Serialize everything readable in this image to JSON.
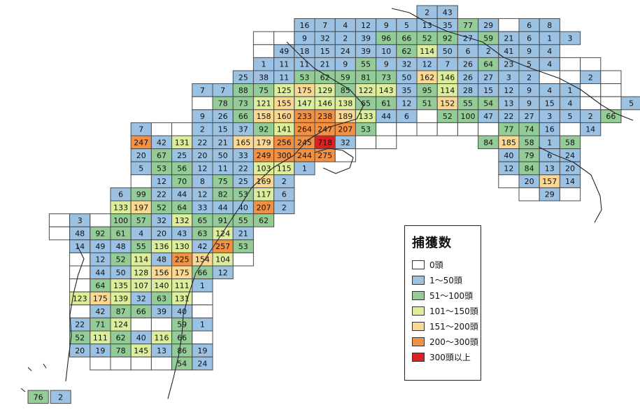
{
  "colors": {
    "zero": "#ffffff",
    "c1_50": "#9bc1e3",
    "c51_100": "#94cc98",
    "c101_150": "#dcee9c",
    "c151_200": "#fbd891",
    "c200_300": "#f29044",
    "c300_plus": "#e02020"
  },
  "legend": {
    "title": "捕獲数",
    "items": [
      {
        "label": "0頭",
        "color_key": "zero"
      },
      {
        "label": "1～50頭",
        "color_key": "c1_50"
      },
      {
        "label": "51～100頭",
        "color_key": "c51_100"
      },
      {
        "label": "101～150頭",
        "color_key": "c101_150"
      },
      {
        "label": "151～200頭",
        "color_key": "c151_200"
      },
      {
        "label": "200～300頭",
        "color_key": "c200_300"
      },
      {
        "label": "300頭以上",
        "color_key": "c300_plus"
      }
    ]
  },
  "grid_rows": [
    [
      {
        "c": 20,
        "v": "2"
      },
      {
        "c": 21,
        "v": "43"
      }
    ],
    [
      {
        "c": 14,
        "v": "16"
      },
      {
        "c": 15,
        "v": "7"
      },
      {
        "c": 16,
        "v": "4"
      },
      {
        "c": 17,
        "v": "12"
      },
      {
        "c": 18,
        "v": "9"
      },
      {
        "c": 19,
        "v": "5"
      },
      {
        "c": 20,
        "v": "13"
      },
      {
        "c": 21,
        "v": "35"
      },
      {
        "c": 22,
        "v": "77"
      },
      {
        "c": 23,
        "v": "29"
      },
      {
        "c": 24,
        "v": ""
      },
      {
        "c": 25,
        "v": "6"
      },
      {
        "c": 26,
        "v": "8"
      }
    ],
    [
      {
        "c": 12,
        "v": ""
      },
      {
        "c": 13,
        "v": ""
      },
      {
        "c": 14,
        "v": "9"
      },
      {
        "c": 15,
        "v": "32"
      },
      {
        "c": 16,
        "v": "2"
      },
      {
        "c": 17,
        "v": "39"
      },
      {
        "c": 18,
        "v": "96"
      },
      {
        "c": 19,
        "v": "66"
      },
      {
        "c": 20,
        "v": "52"
      },
      {
        "c": 21,
        "v": "92"
      },
      {
        "c": 22,
        "v": "27"
      },
      {
        "c": 23,
        "v": "59"
      },
      {
        "c": 24,
        "v": "21"
      },
      {
        "c": 25,
        "v": "6"
      },
      {
        "c": 26,
        "v": "1"
      },
      {
        "c": 27,
        "v": "3"
      }
    ],
    [
      {
        "c": 12,
        "v": ""
      },
      {
        "c": 13,
        "v": "49"
      },
      {
        "c": 14,
        "v": "18"
      },
      {
        "c": 15,
        "v": "15"
      },
      {
        "c": 16,
        "v": "24"
      },
      {
        "c": 17,
        "v": "39"
      },
      {
        "c": 18,
        "v": "10"
      },
      {
        "c": 19,
        "v": "62"
      },
      {
        "c": 20,
        "v": "114"
      },
      {
        "c": 21,
        "v": "50"
      },
      {
        "c": 22,
        "v": "6"
      },
      {
        "c": 23,
        "v": "2"
      },
      {
        "c": 24,
        "v": "41"
      },
      {
        "c": 25,
        "v": "9"
      },
      {
        "c": 26,
        "v": "4"
      }
    ],
    [
      {
        "c": 12,
        "v": "1"
      },
      {
        "c": 13,
        "v": "11"
      },
      {
        "c": 14,
        "v": "11"
      },
      {
        "c": 15,
        "v": "21"
      },
      {
        "c": 16,
        "v": "9"
      },
      {
        "c": 17,
        "v": "55"
      },
      {
        "c": 18,
        "v": "9"
      },
      {
        "c": 19,
        "v": "32"
      },
      {
        "c": 20,
        "v": "12"
      },
      {
        "c": 21,
        "v": "7"
      },
      {
        "c": 22,
        "v": "26"
      },
      {
        "c": 23,
        "v": "64"
      },
      {
        "c": 24,
        "v": "23"
      },
      {
        "c": 25,
        "v": "5"
      },
      {
        "c": 26,
        "v": "4"
      },
      {
        "c": 27,
        "v": ""
      },
      {
        "c": 28,
        "v": ""
      }
    ],
    [
      {
        "c": 11,
        "v": "25"
      },
      {
        "c": 12,
        "v": "38"
      },
      {
        "c": 13,
        "v": "11"
      },
      {
        "c": 14,
        "v": "53"
      },
      {
        "c": 15,
        "v": "62"
      },
      {
        "c": 16,
        "v": "59"
      },
      {
        "c": 17,
        "v": "81"
      },
      {
        "c": 18,
        "v": "73"
      },
      {
        "c": 19,
        "v": "50"
      },
      {
        "c": 20,
        "v": "162"
      },
      {
        "c": 21,
        "v": "146"
      },
      {
        "c": 22,
        "v": "26"
      },
      {
        "c": 23,
        "v": "27"
      },
      {
        "c": 24,
        "v": "3"
      },
      {
        "c": 25,
        "v": "2"
      },
      {
        "c": 26,
        "v": ""
      },
      {
        "c": 27,
        "v": ""
      },
      {
        "c": 28,
        "v": "2"
      },
      {
        "c": 29,
        "v": ""
      }
    ],
    [
      {
        "c": 9,
        "v": "7"
      },
      {
        "c": 10,
        "v": "7"
      },
      {
        "c": 11,
        "v": "88"
      },
      {
        "c": 12,
        "v": "75"
      },
      {
        "c": 13,
        "v": "125"
      },
      {
        "c": 14,
        "v": "175"
      },
      {
        "c": 15,
        "v": "129"
      },
      {
        "c": 16,
        "v": "85"
      },
      {
        "c": 17,
        "v": "122"
      },
      {
        "c": 18,
        "v": "143"
      },
      {
        "c": 19,
        "v": "35"
      },
      {
        "c": 20,
        "v": "95"
      },
      {
        "c": 21,
        "v": "114"
      },
      {
        "c": 22,
        "v": "28"
      },
      {
        "c": 23,
        "v": "15"
      },
      {
        "c": 24,
        "v": "12"
      },
      {
        "c": 25,
        "v": "9"
      },
      {
        "c": 26,
        "v": "4"
      },
      {
        "c": 27,
        "v": "1"
      },
      {
        "c": 28,
        "v": ""
      },
      {
        "c": 29,
        "v": ""
      }
    ],
    [
      {
        "c": 9,
        "v": ""
      },
      {
        "c": 10,
        "v": "78"
      },
      {
        "c": 11,
        "v": "73"
      },
      {
        "c": 12,
        "v": "121"
      },
      {
        "c": 13,
        "v": "155"
      },
      {
        "c": 14,
        "v": "147"
      },
      {
        "c": 15,
        "v": "146"
      },
      {
        "c": 16,
        "v": "138"
      },
      {
        "c": 17,
        "v": "65"
      },
      {
        "c": 18,
        "v": "61"
      },
      {
        "c": 19,
        "v": "12"
      },
      {
        "c": 20,
        "v": "51"
      },
      {
        "c": 21,
        "v": "152"
      },
      {
        "c": 22,
        "v": "55"
      },
      {
        "c": 23,
        "v": "54"
      },
      {
        "c": 24,
        "v": "13"
      },
      {
        "c": 25,
        "v": "9"
      },
      {
        "c": 26,
        "v": "15"
      },
      {
        "c": 27,
        "v": "4"
      },
      {
        "c": 28,
        "v": ""
      },
      {
        "c": 29,
        "v": ""
      },
      {
        "c": 30,
        "v": "5"
      }
    ],
    [
      {
        "c": 9,
        "v": "9"
      },
      {
        "c": 10,
        "v": "26"
      },
      {
        "c": 11,
        "v": "66"
      },
      {
        "c": 12,
        "v": "158"
      },
      {
        "c": 13,
        "v": "160"
      },
      {
        "c": 14,
        "v": "233"
      },
      {
        "c": 15,
        "v": "238"
      },
      {
        "c": 16,
        "v": "189"
      },
      {
        "c": 17,
        "v": "133"
      },
      {
        "c": 18,
        "v": "44"
      },
      {
        "c": 19,
        "v": "6"
      },
      {
        "c": 20,
        "v": ""
      },
      {
        "c": 21,
        "v": "52"
      },
      {
        "c": 22,
        "v": "100"
      },
      {
        "c": 23,
        "v": "47"
      },
      {
        "c": 24,
        "v": "22"
      },
      {
        "c": 25,
        "v": "27"
      },
      {
        "c": 26,
        "v": "3"
      },
      {
        "c": 27,
        "v": "5"
      },
      {
        "c": 28,
        "v": "2"
      },
      {
        "c": 29,
        "v": "66"
      }
    ],
    [
      {
        "c": 6,
        "v": "7"
      },
      {
        "c": 7,
        "v": ""
      },
      {
        "c": 8,
        "v": ""
      },
      {
        "c": 9,
        "v": "2"
      },
      {
        "c": 10,
        "v": "15"
      },
      {
        "c": 11,
        "v": "37"
      },
      {
        "c": 12,
        "v": "92"
      },
      {
        "c": 13,
        "v": "141"
      },
      {
        "c": 14,
        "v": "264"
      },
      {
        "c": 15,
        "v": "247"
      },
      {
        "c": 16,
        "v": "207"
      },
      {
        "c": 17,
        "v": "53"
      },
      {
        "c": 18,
        "v": ""
      },
      {
        "c": 19,
        "v": ""
      },
      {
        "c": 20,
        "v": ""
      },
      {
        "c": 21,
        "v": ""
      },
      {
        "c": 22,
        "v": ""
      },
      {
        "c": 23,
        "v": ""
      },
      {
        "c": 24,
        "v": "77"
      },
      {
        "c": 25,
        "v": "74"
      },
      {
        "c": 26,
        "v": "16"
      },
      {
        "c": 27,
        "v": ""
      },
      {
        "c": 28,
        "v": "14"
      }
    ],
    [
      {
        "c": 6,
        "v": "247"
      },
      {
        "c": 7,
        "v": "42"
      },
      {
        "c": 8,
        "v": "131"
      },
      {
        "c": 9,
        "v": "22"
      },
      {
        "c": 10,
        "v": "21"
      },
      {
        "c": 11,
        "v": "165"
      },
      {
        "c": 12,
        "v": "179"
      },
      {
        "c": 13,
        "v": "256"
      },
      {
        "c": 14,
        "v": "245"
      },
      {
        "c": 15,
        "v": "718"
      },
      {
        "c": 16,
        "v": "32"
      },
      {
        "c": 17,
        "v": ""
      },
      {
        "c": 18,
        "v": ""
      },
      {
        "c": 23,
        "v": "84"
      },
      {
        "c": 24,
        "v": "185"
      },
      {
        "c": 25,
        "v": "58"
      },
      {
        "c": 26,
        "v": "1"
      },
      {
        "c": 27,
        "v": "58"
      }
    ],
    [
      {
        "c": 6,
        "v": "20"
      },
      {
        "c": 7,
        "v": "67"
      },
      {
        "c": 8,
        "v": "25"
      },
      {
        "c": 9,
        "v": "20"
      },
      {
        "c": 10,
        "v": "50"
      },
      {
        "c": 11,
        "v": "33"
      },
      {
        "c": 12,
        "v": "249"
      },
      {
        "c": 13,
        "v": "300"
      },
      {
        "c": 14,
        "v": "244"
      },
      {
        "c": 15,
        "v": "275"
      },
      {
        "c": 16,
        "v": ""
      },
      {
        "c": 24,
        "v": "40"
      },
      {
        "c": 25,
        "v": "79"
      },
      {
        "c": 26,
        "v": "6"
      },
      {
        "c": 27,
        "v": "24"
      }
    ],
    [
      {
        "c": 6,
        "v": "5"
      },
      {
        "c": 7,
        "v": "53"
      },
      {
        "c": 8,
        "v": "56"
      },
      {
        "c": 9,
        "v": "12"
      },
      {
        "c": 10,
        "v": "11"
      },
      {
        "c": 11,
        "v": "22"
      },
      {
        "c": 12,
        "v": "103"
      },
      {
        "c": 13,
        "v": "115"
      },
      {
        "c": 14,
        "v": "1"
      },
      {
        "c": 24,
        "v": "12"
      },
      {
        "c": 25,
        "v": "84"
      },
      {
        "c": 26,
        "v": "13"
      },
      {
        "c": 27,
        "v": "20"
      }
    ],
    [
      {
        "c": 6,
        "v": ""
      },
      {
        "c": 7,
        "v": "12"
      },
      {
        "c": 8,
        "v": "70"
      },
      {
        "c": 9,
        "v": "8"
      },
      {
        "c": 10,
        "v": "75"
      },
      {
        "c": 11,
        "v": "25"
      },
      {
        "c": 12,
        "v": "169"
      },
      {
        "c": 13,
        "v": "2"
      },
      {
        "c": 24,
        "v": ""
      },
      {
        "c": 25,
        "v": "20"
      },
      {
        "c": 26,
        "v": "157"
      },
      {
        "c": 27,
        "v": "14"
      }
    ],
    [
      {
        "c": 5,
        "v": "6"
      },
      {
        "c": 6,
        "v": "99"
      },
      {
        "c": 7,
        "v": "22"
      },
      {
        "c": 8,
        "v": "44"
      },
      {
        "c": 9,
        "v": "12"
      },
      {
        "c": 10,
        "v": "82"
      },
      {
        "c": 11,
        "v": "53"
      },
      {
        "c": 12,
        "v": "117"
      },
      {
        "c": 13,
        "v": "6"
      },
      {
        "c": 25,
        "v": ""
      },
      {
        "c": 26,
        "v": "29"
      },
      {
        "c": 27,
        "v": ""
      }
    ],
    [
      {
        "c": 5,
        "v": "133"
      },
      {
        "c": 6,
        "v": "197"
      },
      {
        "c": 7,
        "v": "52"
      },
      {
        "c": 8,
        "v": "64"
      },
      {
        "c": 9,
        "v": "33"
      },
      {
        "c": 10,
        "v": "44"
      },
      {
        "c": 11,
        "v": "40"
      },
      {
        "c": 12,
        "v": "207"
      },
      {
        "c": 13,
        "v": "2"
      }
    ],
    [
      {
        "c": 2,
        "v": ""
      },
      {
        "c": 3,
        "v": "3"
      },
      {
        "c": 4,
        "v": ""
      },
      {
        "c": 5,
        "v": "100"
      },
      {
        "c": 6,
        "v": "57"
      },
      {
        "c": 7,
        "v": "32"
      },
      {
        "c": 8,
        "v": "132"
      },
      {
        "c": 9,
        "v": "65"
      },
      {
        "c": 10,
        "v": "91"
      },
      {
        "c": 11,
        "v": "55"
      },
      {
        "c": 12,
        "v": "62"
      }
    ],
    [
      {
        "c": 2,
        "v": ""
      },
      {
        "c": 3,
        "v": "48"
      },
      {
        "c": 4,
        "v": "92"
      },
      {
        "c": 5,
        "v": "61"
      },
      {
        "c": 6,
        "v": "4"
      },
      {
        "c": 7,
        "v": "20"
      },
      {
        "c": 8,
        "v": "43"
      },
      {
        "c": 9,
        "v": "63"
      },
      {
        "c": 10,
        "v": "124"
      },
      {
        "c": 11,
        "v": "21"
      }
    ],
    [
      {
        "c": 3,
        "v": "14"
      },
      {
        "c": 4,
        "v": "49"
      },
      {
        "c": 5,
        "v": "48"
      },
      {
        "c": 6,
        "v": "55"
      },
      {
        "c": 7,
        "v": "136"
      },
      {
        "c": 8,
        "v": "130"
      },
      {
        "c": 9,
        "v": "42"
      },
      {
        "c": 10,
        "v": "257"
      },
      {
        "c": 11,
        "v": "53"
      }
    ],
    [
      {
        "c": 3,
        "v": ""
      },
      {
        "c": 4,
        "v": "12"
      },
      {
        "c": 5,
        "v": "52"
      },
      {
        "c": 6,
        "v": "114"
      },
      {
        "c": 7,
        "v": "48"
      },
      {
        "c": 8,
        "v": "225"
      },
      {
        "c": 9,
        "v": "154"
      },
      {
        "c": 10,
        "v": "104"
      },
      {
        "c": 11,
        "v": ""
      }
    ],
    [
      {
        "c": 3,
        "v": ""
      },
      {
        "c": 4,
        "v": "44"
      },
      {
        "c": 5,
        "v": "50"
      },
      {
        "c": 6,
        "v": "128"
      },
      {
        "c": 7,
        "v": "156"
      },
      {
        "c": 8,
        "v": "175"
      },
      {
        "c": 9,
        "v": "66"
      },
      {
        "c": 10,
        "v": "12"
      }
    ],
    [
      {
        "c": 3,
        "v": ""
      },
      {
        "c": 4,
        "v": "64"
      },
      {
        "c": 5,
        "v": "135"
      },
      {
        "c": 6,
        "v": "107"
      },
      {
        "c": 7,
        "v": "140"
      },
      {
        "c": 8,
        "v": "111"
      },
      {
        "c": 9,
        "v": "1"
      }
    ],
    [
      {
        "c": 3,
        "v": "123"
      },
      {
        "c": 4,
        "v": "175"
      },
      {
        "c": 5,
        "v": "139"
      },
      {
        "c": 6,
        "v": "32"
      },
      {
        "c": 7,
        "v": "63"
      },
      {
        "c": 8,
        "v": "131"
      },
      {
        "c": 9,
        "v": ""
      }
    ],
    [
      {
        "c": 3,
        "v": ""
      },
      {
        "c": 4,
        "v": "42"
      },
      {
        "c": 5,
        "v": "87"
      },
      {
        "c": 6,
        "v": "66"
      },
      {
        "c": 7,
        "v": "39"
      },
      {
        "c": 8,
        "v": "40"
      },
      {
        "c": 9,
        "v": ""
      }
    ],
    [
      {
        "c": 3,
        "v": "22"
      },
      {
        "c": 4,
        "v": "71"
      },
      {
        "c": 5,
        "v": "124"
      },
      {
        "c": 6,
        "v": ""
      },
      {
        "c": 7,
        "v": ""
      },
      {
        "c": 8,
        "v": "59"
      },
      {
        "c": 9,
        "v": "1"
      }
    ],
    [
      {
        "c": 3,
        "v": "52"
      },
      {
        "c": 4,
        "v": "111"
      },
      {
        "c": 5,
        "v": "62"
      },
      {
        "c": 6,
        "v": "40"
      },
      {
        "c": 7,
        "v": "116"
      },
      {
        "c": 8,
        "v": "66"
      },
      {
        "c": 9,
        "v": ""
      }
    ],
    [
      {
        "c": 3,
        "v": "20"
      },
      {
        "c": 4,
        "v": "19"
      },
      {
        "c": 5,
        "v": "78"
      },
      {
        "c": 6,
        "v": "145"
      },
      {
        "c": 7,
        "v": "13"
      },
      {
        "c": 8,
        "v": "86"
      },
      {
        "c": 9,
        "v": "19"
      }
    ],
    [
      {
        "c": 4,
        "v": ""
      },
      {
        "c": 5,
        "v": ""
      },
      {
        "c": 6,
        "v": ""
      },
      {
        "c": 7,
        "v": ""
      },
      {
        "c": 8,
        "v": "54"
      },
      {
        "c": 9,
        "v": "24"
      }
    ]
  ],
  "extra_cells": [
    {
      "label": "76",
      "pos": "far-southwest"
    },
    {
      "label": "2",
      "pos": "far-southwest-right"
    }
  ]
}
